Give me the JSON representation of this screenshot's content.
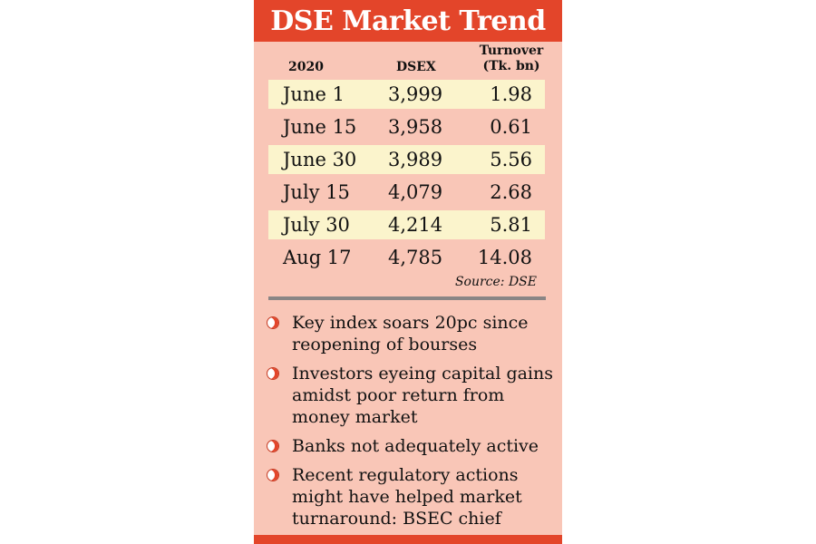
{
  "title": "DSE Market Trend",
  "table": {
    "headers": {
      "year": "2020",
      "dsex": "DSEX",
      "turnover_line1": "Turnover",
      "turnover_line2": "(Tk. bn)"
    },
    "rows": [
      {
        "date": "June 1",
        "dsex": "3,999",
        "turnover": "1.98"
      },
      {
        "date": "June 15",
        "dsex": "3,958",
        "turnover": "0.61"
      },
      {
        "date": "June 30",
        "dsex": "3,989",
        "turnover": "5.56"
      },
      {
        "date": "July 15",
        "dsex": "4,079",
        "turnover": "2.68"
      },
      {
        "date": "July 30",
        "dsex": "4,214",
        "turnover": "5.81"
      },
      {
        "date": "Aug 17",
        "dsex": "4,785",
        "turnover": "14.08"
      }
    ],
    "source": "Source: DSE"
  },
  "bullets": [
    {
      "icon": "bullet-circle-icon",
      "text": "Key index soars 20pc since reopening of bourses"
    },
    {
      "icon": "bullet-circle-icon",
      "text": "Investors eyeing capital gains amidst poor return from money market"
    },
    {
      "icon": "bullet-circle-icon",
      "text": "Banks not adequately active"
    },
    {
      "icon": "bullet-circle-icon",
      "text": "Recent regulatory actions might have helped market turnaround: BSEC chief"
    }
  ],
  "colors": {
    "header": "#e3452a",
    "panel": "#f9c6b7",
    "row_highlight": "#fbf4cc",
    "divider": "#8a8585"
  }
}
